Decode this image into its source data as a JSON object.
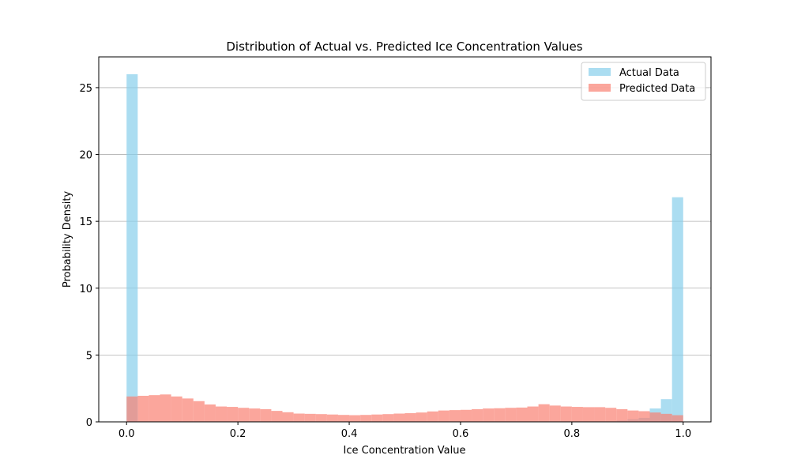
{
  "chart_data": {
    "type": "bar",
    "title": "Distribution of Actual vs. Predicted Ice Concentration Values",
    "xlabel": "Ice Concentration Value",
    "ylabel": "Probability Density",
    "xlim": [
      -0.05,
      1.05
    ],
    "ylim": [
      0,
      27.3
    ],
    "xticks": [
      0.0,
      0.2,
      0.4,
      0.6,
      0.8,
      1.0
    ],
    "xtick_labels": [
      "0.0",
      "0.2",
      "0.4",
      "0.6",
      "0.8",
      "1.0"
    ],
    "yticks": [
      0,
      5,
      10,
      15,
      20,
      25
    ],
    "ytick_labels": [
      "0",
      "5",
      "10",
      "15",
      "20",
      "25"
    ],
    "grid": "y",
    "legend_position": "top-right",
    "series": [
      {
        "name": "Actual Data",
        "color": "#87CEEB",
        "bin_start": 0.0,
        "bin_width": 0.02,
        "values": [
          26.0,
          0.05,
          0.05,
          0.05,
          0.05,
          0.05,
          0.05,
          0.05,
          0.05,
          0.05,
          0.05,
          0.05,
          0.05,
          0.05,
          0.05,
          0.05,
          0.05,
          0.05,
          0.05,
          0.05,
          0.05,
          0.05,
          0.05,
          0.05,
          0.05,
          0.05,
          0.05,
          0.05,
          0.05,
          0.05,
          0.05,
          0.05,
          0.05,
          0.05,
          0.05,
          0.05,
          0.05,
          0.05,
          0.05,
          0.05,
          0.05,
          0.05,
          0.05,
          0.05,
          0.1,
          0.2,
          0.3,
          1.0,
          1.7,
          16.8
        ]
      },
      {
        "name": "Predicted Data",
        "color": "#FA8072",
        "bin_start": 0.0,
        "bin_width": 0.02,
        "values": [
          1.9,
          1.95,
          2.0,
          2.05,
          1.9,
          1.75,
          1.55,
          1.3,
          1.15,
          1.12,
          1.05,
          1.0,
          0.95,
          0.82,
          0.72,
          0.62,
          0.6,
          0.58,
          0.55,
          0.52,
          0.5,
          0.52,
          0.55,
          0.58,
          0.62,
          0.65,
          0.7,
          0.78,
          0.85,
          0.88,
          0.9,
          0.95,
          1.0,
          1.02,
          1.05,
          1.07,
          1.15,
          1.32,
          1.22,
          1.15,
          1.12,
          1.1,
          1.1,
          1.05,
          0.95,
          0.85,
          0.8,
          0.7,
          0.6,
          0.5
        ]
      }
    ]
  }
}
